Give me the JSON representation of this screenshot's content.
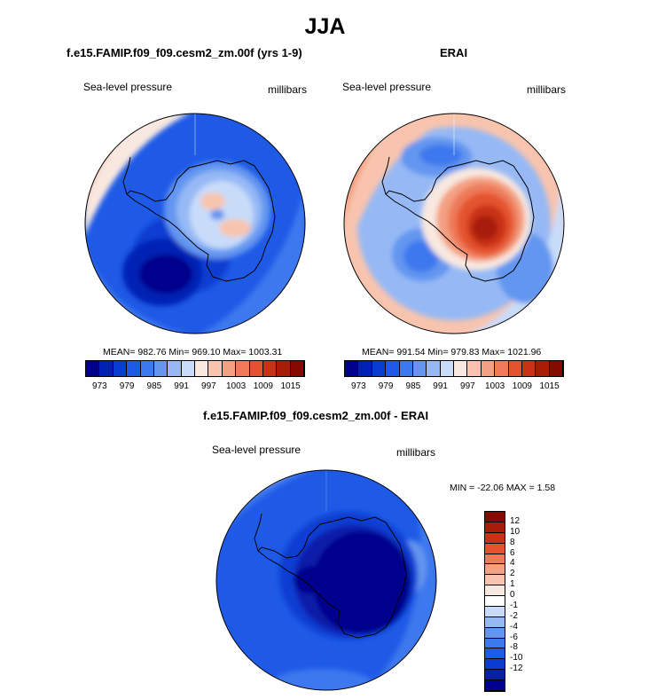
{
  "figure": {
    "title": "JJA"
  },
  "panel_model": {
    "title": "f.e15.FAMIP.f09_f09.cesm2_zm.00f (yrs 1-9)",
    "variable": "Sea-level pressure",
    "units": "millibars",
    "stats": "MEAN= 982.76  Min= 969.10  Max= 1003.31"
  },
  "panel_obs": {
    "title": "ERAI",
    "variable": "Sea-level pressure",
    "units": "millibars",
    "stats": "MEAN= 991.54  Min= 979.83  Max= 1021.96"
  },
  "panel_diff": {
    "title": "f.e15.FAMIP.f09_f09.cesm2_zm.00f - ERAI",
    "variable": "Sea-level pressure",
    "units": "millibars",
    "stats": "MIN = -22.06 MAX =   1.58"
  },
  "colorbar_abs": {
    "colors": [
      "#00008c",
      "#0022b4",
      "#0a3cd2",
      "#1e5ae6",
      "#3c78ee",
      "#6496f0",
      "#96b9f5",
      "#c8dcfa",
      "#f8e8e0",
      "#f8c4ae",
      "#f4a082",
      "#ee7a5a",
      "#e4522e",
      "#c83216",
      "#a81c08",
      "#840a00"
    ],
    "tick_labels": [
      "973",
      "979",
      "985",
      "991",
      "997",
      "1003",
      "1009",
      "1015"
    ]
  },
  "colorbar_diff": {
    "colors": [
      "#00008c",
      "#0a1ea8",
      "#0a3cd2",
      "#1e5ae6",
      "#3c78ee",
      "#6496f0",
      "#96b9f5",
      "#c8dcfa",
      "#ffffff",
      "#f8e8e0",
      "#f8c4ae",
      "#f4a082",
      "#ee7a5a",
      "#e4522e",
      "#c83216",
      "#a81c08",
      "#840a00"
    ],
    "tick_labels": [
      "12",
      "10",
      "8",
      "6",
      "4",
      "2",
      "1",
      "0",
      "-1",
      "-2",
      "-4",
      "-6",
      "-8",
      "-10",
      "-12"
    ]
  }
}
